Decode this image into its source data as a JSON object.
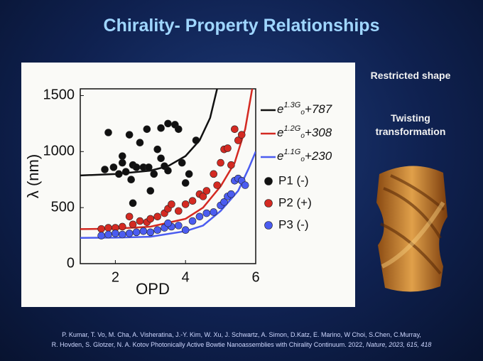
{
  "slide": {
    "title": "Chirality- Property Relationships",
    "side_notes": [
      "Restricted shape",
      "Twisting transformation"
    ],
    "citation": [
      "P. Kumar, T. Vo, M. Cha, A. Visheratina, J.-Y. Kim, W. Xu, J. Schwartz, A. Simon, D.Katz, E. Marino, W Choi, S.Chen, C.Murray,",
      "R. Hovden, S. Glotzer, N. A. Kotov Photonically Active Bowtie Nanoassemblies with Chirality Continuum. 2022,",
      "Nature, 2023, 615, 418"
    ]
  },
  "chart_data": {
    "type": "scatter",
    "x_label": "OPD",
    "y_label": "λ (nm)",
    "xlim": [
      1,
      6
    ],
    "ylim": [
      0,
      1560
    ],
    "xticks": [
      2,
      4,
      6
    ],
    "yticks": [
      0,
      500,
      1000,
      1500
    ],
    "series": [
      {
        "kind": "line",
        "name_parts": [
          "e",
          "1.3G",
          "o",
          "+787"
        ],
        "color": "#111111",
        "x": [
          1.0,
          2.0,
          3.0,
          3.5,
          4.0,
          4.4,
          4.7,
          4.9
        ],
        "values": [
          787,
          800,
          830,
          870,
          960,
          1100,
          1300,
          1560
        ]
      },
      {
        "kind": "line",
        "name_parts": [
          "e",
          "1.2G",
          "o",
          "+308"
        ],
        "color": "#d42a22",
        "x": [
          1.0,
          2.0,
          3.0,
          4.0,
          4.5,
          5.0,
          5.4,
          5.7,
          5.9
        ],
        "values": [
          308,
          312,
          330,
          400,
          500,
          690,
          900,
          1200,
          1560
        ]
      },
      {
        "kind": "line",
        "name_parts": [
          "e",
          "1.1G",
          "o",
          "+230"
        ],
        "color": "#4b5cf0",
        "x": [
          1.0,
          2.0,
          3.0,
          4.0,
          4.5,
          5.0,
          5.5,
          5.8,
          6.0
        ],
        "values": [
          230,
          232,
          240,
          290,
          340,
          470,
          650,
          850,
          1000
        ]
      },
      {
        "kind": "points",
        "name": "P1 (-)",
        "color": "#111111",
        "x": [
          1.7,
          1.8,
          1.95,
          2.1,
          2.2,
          2.3,
          2.4,
          2.45,
          2.5,
          2.6,
          2.7,
          2.8,
          2.9,
          2.95,
          3.0,
          3.1,
          3.2,
          3.3,
          3.4,
          3.5,
          3.5,
          3.7,
          3.8,
          3.9,
          4.0,
          4.3,
          4.1,
          2.5,
          3.3,
          2.2
        ],
        "values": [
          840,
          1170,
          860,
          800,
          900,
          820,
          1150,
          750,
          880,
          860,
          1080,
          860,
          1200,
          860,
          650,
          800,
          1020,
          1210,
          870,
          1250,
          830,
          1240,
          1200,
          900,
          720,
          1100,
          800,
          540,
          940,
          960
        ]
      },
      {
        "kind": "points",
        "name": "P2 (+)",
        "color": "#d42a22",
        "x": [
          1.6,
          1.8,
          2.0,
          2.2,
          2.4,
          2.5,
          2.7,
          2.9,
          3.0,
          3.2,
          3.4,
          3.5,
          3.6,
          3.8,
          4.0,
          4.2,
          4.4,
          4.5,
          4.6,
          4.8,
          5.0,
          5.1,
          5.2,
          5.4,
          5.5,
          5.6,
          5.3,
          4.9
        ],
        "values": [
          310,
          320,
          320,
          330,
          420,
          350,
          380,
          370,
          400,
          420,
          450,
          490,
          530,
          470,
          530,
          560,
          620,
          600,
          650,
          800,
          900,
          1020,
          1030,
          1200,
          1100,
          1150,
          880,
          700
        ]
      },
      {
        "kind": "points",
        "name": "P3 (-)",
        "color": "#4b5cf0",
        "x": [
          1.6,
          1.8,
          2.0,
          2.2,
          2.4,
          2.6,
          2.8,
          3.0,
          3.2,
          3.4,
          3.6,
          3.8,
          4.0,
          4.2,
          4.4,
          4.6,
          4.8,
          5.0,
          5.1,
          5.2,
          5.3,
          5.4,
          5.5,
          5.6,
          5.7,
          3.5
        ],
        "values": [
          250,
          260,
          270,
          260,
          270,
          280,
          290,
          280,
          300,
          320,
          330,
          340,
          300,
          380,
          420,
          450,
          460,
          520,
          550,
          600,
          620,
          740,
          760,
          740,
          700,
          360
        ]
      }
    ]
  }
}
